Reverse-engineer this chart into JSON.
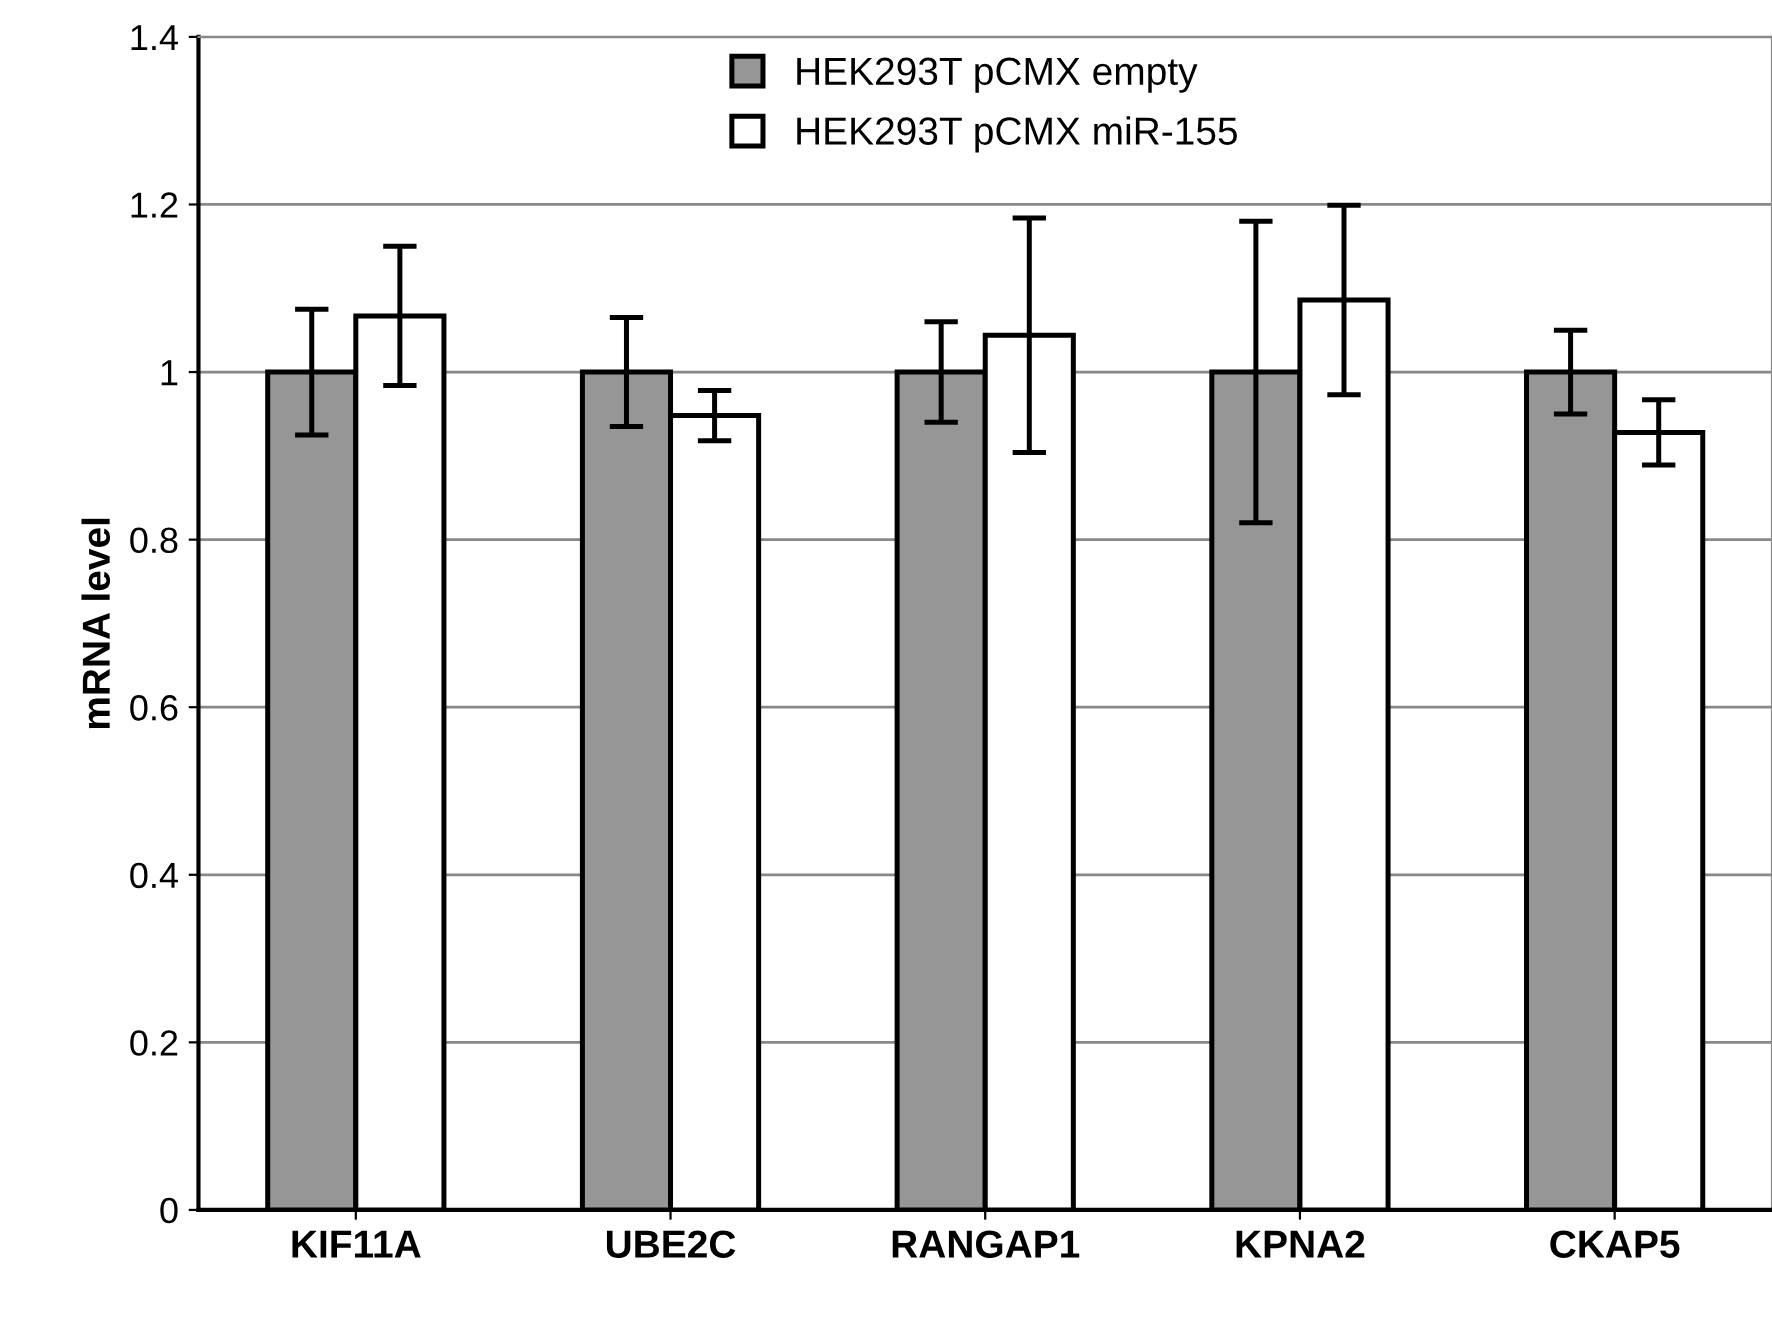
{
  "chart_data": {
    "type": "bar",
    "ylabel": "mRNA level",
    "categories": [
      "KIF11A",
      "UBE2C",
      "RANGAP1",
      "KPNA2",
      "CKAP5"
    ],
    "series": [
      {
        "name": "HEK293T pCMX empty",
        "color": "#969696",
        "values": [
          1,
          1,
          1,
          1,
          1
        ],
        "errors": [
          0.075,
          0.065,
          0.06,
          0.18,
          0.05
        ]
      },
      {
        "name": "HEK293T pCMX miR-155",
        "color": "#ffffff",
        "values": [
          1.067,
          0.948,
          1.044,
          1.086,
          0.928
        ],
        "errors": [
          0.083,
          0.03,
          0.14,
          0.113,
          0.039
        ]
      }
    ],
    "ylim": [
      0,
      1.4
    ],
    "yticks": [
      0,
      0.2,
      0.4,
      0.6,
      0.8,
      1,
      1.2,
      1.4
    ],
    "grid": "y",
    "legend": "top"
  }
}
